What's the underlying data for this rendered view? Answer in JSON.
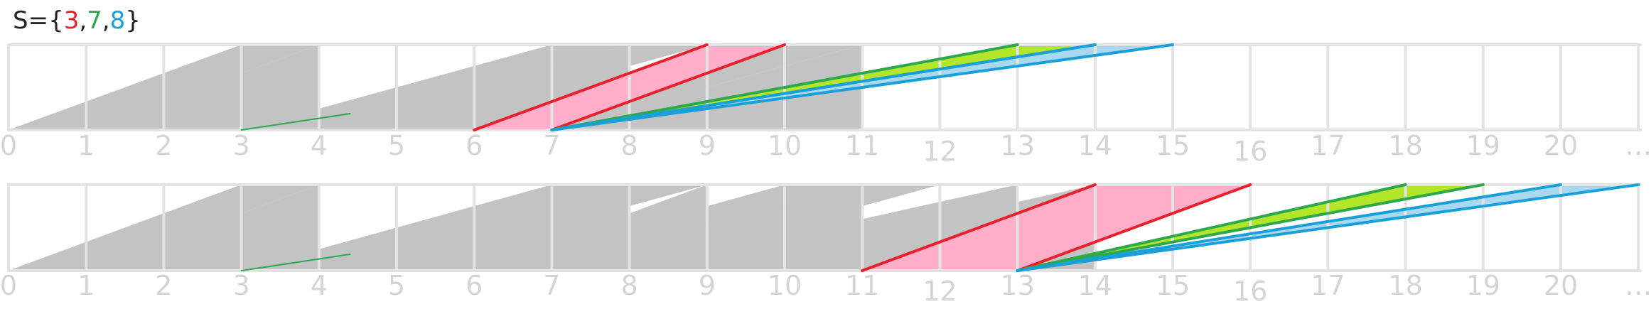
{
  "title": {
    "prefix": "S={",
    "suffix": "}",
    "separator": ",",
    "members": [
      {
        "text": "3",
        "color": "#e8202e"
      },
      {
        "text": "7",
        "color": "#2da84c"
      },
      {
        "text": "8",
        "color": "#1aa0d8"
      }
    ]
  },
  "colors": {
    "grid": "#e3e3e3",
    "gray_fill": "#c3c3c3",
    "tick_label": "#d4d4d4",
    "red_line": "#e8202e",
    "red_fill": "#ffaec9",
    "green_line": "#2da84c",
    "green_fill": "#b2e629",
    "blue_line": "#1aa0d8",
    "blue_fill": "#a9d9f0"
  },
  "axis": {
    "ticks": [
      "0",
      "1",
      "2",
      "3",
      "4",
      "5",
      "6",
      "7",
      "8",
      "9",
      "10",
      "11",
      "12",
      "13",
      "14",
      "15",
      "16",
      "17",
      "18",
      "19",
      "20",
      "…"
    ]
  },
  "rows": [
    {
      "start": 7,
      "gray_triangles": [
        [
          0,
          3
        ],
        [
          1,
          4
        ],
        [
          3,
          7
        ],
        [
          4,
          8
        ],
        [
          6,
          9
        ],
        [
          7,
          11
        ]
      ],
      "gray_bands": [
        [
          0,
          3,
          4
        ],
        [
          3,
          7,
          8
        ],
        [
          4,
          8,
          9
        ],
        [
          6,
          10,
          11
        ]
      ],
      "red": {
        "from": [
          6,
          7
        ],
        "to": [
          9,
          10
        ]
      },
      "green": {
        "from": 7,
        "to": [
          13,
          14
        ]
      },
      "blue": {
        "from": 7,
        "to": [
          14,
          15
        ]
      }
    },
    {
      "start": 13,
      "gray_triangles": [
        [
          0,
          3
        ],
        [
          1,
          4
        ],
        [
          3,
          7
        ],
        [
          4,
          8
        ],
        [
          6,
          9
        ],
        [
          7,
          11
        ],
        [
          8,
          13
        ],
        [
          9,
          14
        ],
        [
          10,
          13
        ],
        [
          11,
          14
        ]
      ],
      "gray_bands": [
        [
          0,
          3,
          4
        ],
        [
          3,
          7,
          8
        ],
        [
          4,
          8,
          9
        ],
        [
          6,
          10,
          11
        ],
        [
          7,
          11,
          12
        ]
      ],
      "red": {
        "from": [
          11,
          13
        ],
        "to": [
          14,
          16
        ]
      },
      "green": {
        "from": 13,
        "to": [
          18,
          19
        ]
      },
      "blue": {
        "from": 13,
        "to": [
          20,
          21
        ]
      }
    }
  ]
}
